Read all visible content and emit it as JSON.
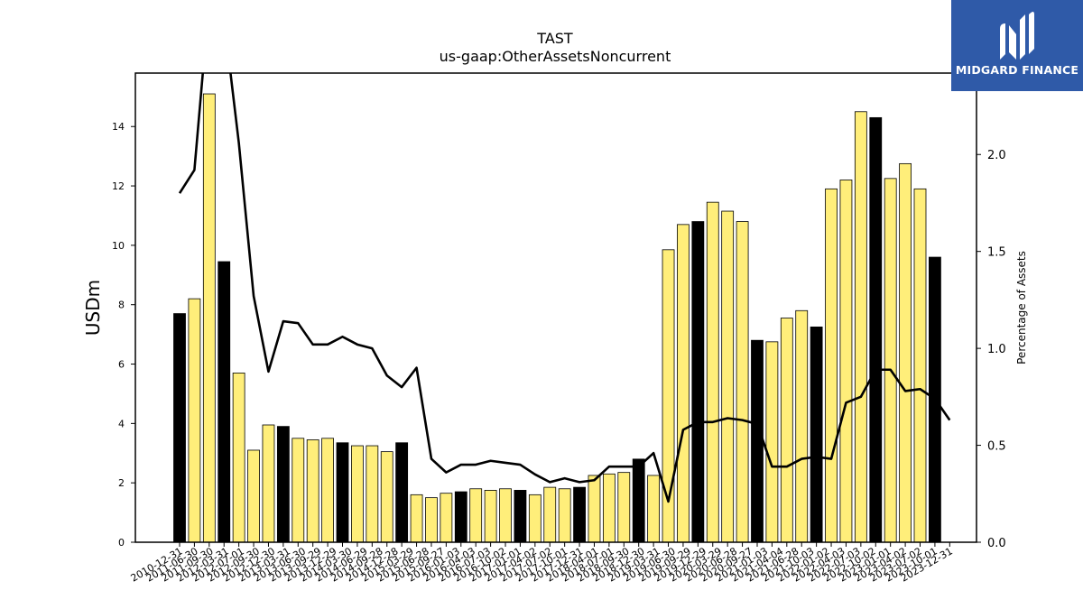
{
  "chart_data": {
    "type": "bar",
    "title": "TAST",
    "subtitle": "us-gaap:OtherAssetsNoncurrent",
    "ylabel": "USDm",
    "y2label": "Percentage of Assets",
    "ylim": [
      0,
      15.8
    ],
    "y2lim": [
      0,
      2.42
    ],
    "yticks": [
      0,
      2,
      4,
      6,
      8,
      10,
      12,
      14
    ],
    "y2ticks": [
      0.0,
      0.5,
      1.0,
      1.5,
      2.0
    ],
    "grid": false,
    "colors": {
      "annual": "#000000",
      "quarterly": "#ffee7a",
      "line": "#000000"
    },
    "categories": [
      "2010-12-31",
      "2011-03-31",
      "2011-06-30",
      "2011-09-30",
      "2011-12-31",
      "2012-03-31",
      "2012-07-01",
      "2012-09-30",
      "2012-12-30",
      "2013-03-31",
      "2013-06-30",
      "2013-09-29",
      "2013-12-29",
      "2014-03-30",
      "2014-06-29",
      "2014-09-28",
      "2014-12-28",
      "2015-03-29",
      "2015-06-28",
      "2015-09-27",
      "2016-01-03",
      "2016-04-03",
      "2016-07-03",
      "2016-10-02",
      "2017-01-01",
      "2017-04-02",
      "2017-07-02",
      "2017-10-01",
      "2017-12-31",
      "2018-04-01",
      "2018-07-01",
      "2018-09-30",
      "2018-12-30",
      "2019-03-31",
      "2019-06-30",
      "2019-09-29",
      "2019-12-29",
      "2020-03-29",
      "2020-06-28",
      "2020-09-27",
      "2021-01-03",
      "2021-04-04",
      "2021-06-28",
      "2021-10-03",
      "2022-01-02",
      "2022-04-03",
      "2022-07-03",
      "2022-10-02",
      "2023-01-01",
      "2023-04-02",
      "2023-07-02",
      "2023-10-01",
      "2023-12-31"
    ],
    "tick_labels": [
      "2010-12-31",
      "2011-06-30",
      "2011-09-30",
      "2012-03-31",
      "2012-07-01",
      "2012-09-30",
      "2012-12-30",
      "2013-03-31",
      "2013-06-30",
      "2013-09-29",
      "2013-12-29",
      "2014-03-30",
      "2014-06-29",
      "2014-09-28",
      "2014-12-28",
      "2015-03-29",
      "2015-06-28",
      "2015-09-27",
      "2016-01-03",
      "2016-04-03",
      "2016-07-03",
      "2016-10-02",
      "2017-01-01",
      "2017-04-02",
      "2017-07-02",
      "2017-10-01",
      "2017-12-31",
      "2018-04-01",
      "2018-07-01",
      "2018-09-30",
      "2018-12-30",
      "2019-03-31",
      "2019-06-30",
      "2019-09-29",
      "2019-12-29",
      "2020-03-29",
      "2020-06-28",
      "2020-09-27",
      "2021-01-03",
      "2021-04-04",
      "2021-06-28",
      "2021-10-03",
      "2022-01-02",
      "2022-04-03",
      "2022-07-03",
      "2022-10-02",
      "2023-01-01",
      "2023-04-02",
      "2023-07-02",
      "2023-10-01",
      "2023-12-31"
    ],
    "series": [
      {
        "type": "bar",
        "values": [
          7.7,
          8.2,
          15.1,
          9.45,
          5.7,
          3.1,
          3.95,
          3.9,
          3.5,
          3.45,
          3.5,
          3.35,
          3.25,
          3.25,
          3.05,
          3.35,
          1.6,
          1.5,
          1.65,
          1.7,
          1.8,
          1.75,
          1.8,
          1.75,
          1.6,
          1.85,
          1.8,
          1.85,
          2.25,
          2.3,
          2.35,
          2.8,
          2.25,
          9.85,
          10.7,
          10.8,
          11.45,
          11.15,
          10.8,
          6.8,
          6.75,
          7.55,
          7.8,
          7.25,
          11.9,
          12.2,
          14.5,
          14.3,
          12.25,
          12.75,
          11.9,
          9.6,
          null
        ],
        "annual": [
          true,
          false,
          false,
          true,
          false,
          false,
          false,
          true,
          false,
          false,
          false,
          true,
          false,
          false,
          false,
          true,
          false,
          false,
          false,
          true,
          false,
          false,
          false,
          true,
          false,
          false,
          false,
          true,
          false,
          false,
          false,
          true,
          false,
          false,
          false,
          true,
          false,
          false,
          false,
          true,
          false,
          false,
          false,
          true,
          false,
          false,
          false,
          true,
          false,
          false,
          false,
          true,
          false
        ]
      },
      {
        "type": "line",
        "axis": "right",
        "values": [
          1.8,
          1.92,
          2.8,
          2.7,
          2.06,
          1.27,
          0.88,
          1.14,
          1.13,
          1.02,
          1.02,
          1.06,
          1.02,
          1.0,
          0.86,
          0.8,
          0.9,
          0.43,
          0.36,
          0.4,
          0.4,
          0.42,
          0.41,
          0.4,
          0.35,
          0.31,
          0.33,
          0.31,
          0.32,
          0.39,
          0.39,
          0.39,
          0.46,
          0.21,
          0.58,
          0.62,
          0.62,
          0.64,
          0.63,
          0.61,
          0.39,
          0.39,
          0.43,
          0.44,
          0.43,
          0.72,
          0.75,
          0.89,
          0.89,
          0.78,
          0.79,
          0.74,
          0.63
        ]
      }
    ]
  },
  "logo": {
    "text": "MIDGARD FINANCE",
    "icon": "midgard-logo-icon"
  }
}
